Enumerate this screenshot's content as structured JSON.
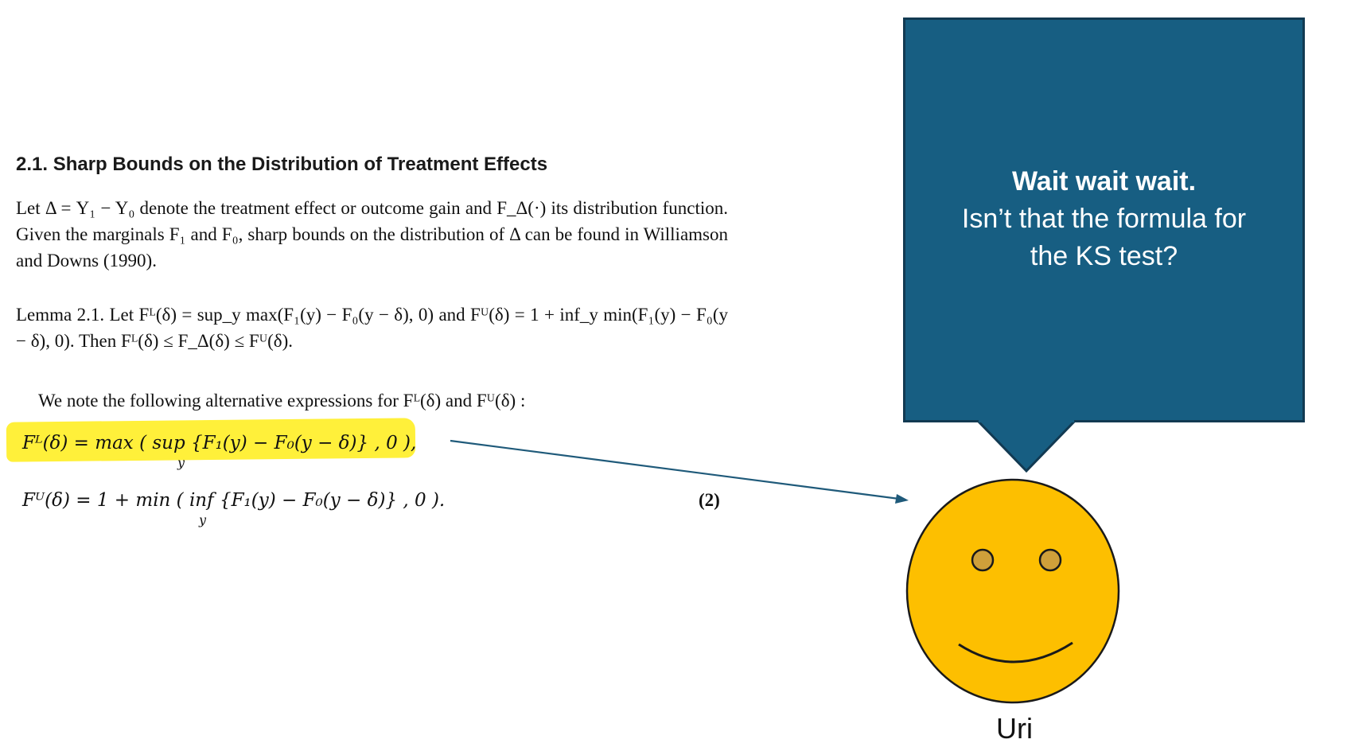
{
  "paper": {
    "section_title": "2.1. Sharp Bounds on the Distribution of Treatment Effects",
    "para1": "Let Δ = Y₁ − Y₀ denote the treatment effect or outcome gain and F_Δ(·) its distribution function. Given the marginals F₁ and F₀, sharp bounds on the distribution of Δ can be found in Williamson and Downs (1990).",
    "para2": "Lemma 2.1. Let Fᴸ(δ) = sup_y max(F₁(y) − F₀(y − δ), 0) and Fᵁ(δ) = 1 + inf_y min(F₁(y) − F₀(y − δ), 0). Then Fᴸ(δ) ≤ F_Δ(δ) ≤ Fᵁ(δ).",
    "para3": "We note the following alternative expressions for Fᴸ(δ) and Fᵁ(δ) :",
    "eq1": "Fᴸ(δ) = max ( sup {F₁(y) − F₀(y − δ)} , 0 ),",
    "eq1_sub": "y",
    "eq2": "Fᵁ(δ) = 1 + min ( inf {F₁(y) − F₀(y − δ)} , 0 ).",
    "eq2_sub": "y",
    "eq_number": "(2)"
  },
  "bubble": {
    "line1": "Wait wait wait.",
    "line2": "Isn’t that the formula for",
    "line3": "the KS test?",
    "color": "#175e82"
  },
  "character": {
    "name": "Uri",
    "face_color": "#fdbf00"
  },
  "highlight_color": "#fff03a",
  "arrow_color": "#1f5a7a"
}
